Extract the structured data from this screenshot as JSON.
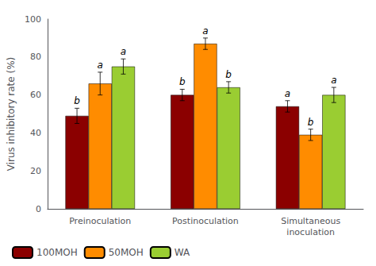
{
  "chart_data": {
    "type": "bar",
    "categories": [
      "Preinoculation",
      "Postinoculation",
      "Simultaneous\ninoculation"
    ],
    "series": [
      {
        "name": "100MOH",
        "color": "#8B0000",
        "values": [
          49,
          60,
          54
        ],
        "errors": [
          4,
          3,
          3
        ],
        "annotations": [
          "b",
          "b",
          "a"
        ]
      },
      {
        "name": "50MOH",
        "color": "#FF8C00",
        "values": [
          66,
          87,
          39
        ],
        "errors": [
          6,
          3,
          3
        ],
        "annotations": [
          "a",
          "a",
          "b"
        ]
      },
      {
        "name": "WA",
        "color": "#9ACD32",
        "values": [
          75,
          64,
          60
        ],
        "errors": [
          4,
          3,
          4
        ],
        "annotations": [
          "a",
          "b",
          "a"
        ]
      }
    ],
    "ylabel": "Virus inhibitory rate (%)",
    "ylim": [
      0,
      100
    ],
    "yticks": [
      0,
      20,
      40,
      60,
      80,
      100
    ],
    "grid": false,
    "legend": "lower left"
  }
}
